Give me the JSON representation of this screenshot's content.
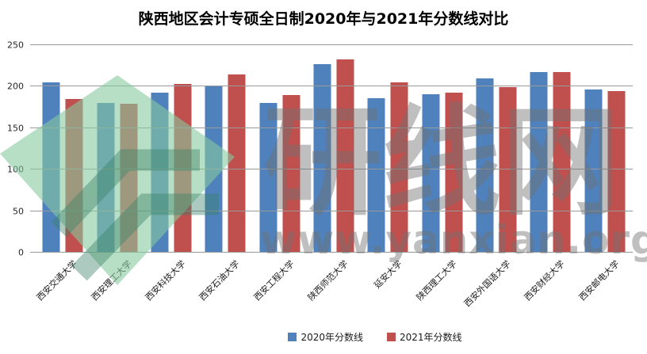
{
  "title": "陕西地区会计专硕全日制2020年与2021年分数线对比",
  "chart_data": {
    "type": "bar",
    "title": "陕西地区会计专硕全日制2020年与2021年分数线对比",
    "categories": [
      "西安交通大学",
      "西安理工大学",
      "西安科技大学",
      "西安石油大学",
      "西安工程大学",
      "陕西师范大学",
      "延安大学",
      "陕西理工大学",
      "西安外国语大学",
      "西安财经大学",
      "西安邮电大学"
    ],
    "series": [
      {
        "name": "2020年分数线",
        "color": "#4f81bd",
        "values": [
          205,
          180,
          193,
          200,
          180,
          227,
          186,
          191,
          210,
          218,
          197
        ]
      },
      {
        "name": "2021年分数线",
        "color": "#c0504d",
        "values": [
          185,
          179,
          203,
          215,
          190,
          233,
          205,
          193,
          199,
          218,
          195
        ]
      }
    ],
    "xlabel": "",
    "ylabel": "",
    "ylim": [
      0,
      250
    ],
    "yticks": [
      0,
      50,
      100,
      150,
      200,
      250
    ],
    "grid": true,
    "legend_position": "bottom"
  },
  "watermark": {
    "site_name": "研线网",
    "site_url": "www.yanxian.org"
  },
  "colors": {
    "series_2020": "#4f81bd",
    "series_2021": "#c0504d",
    "gridline": "#9a9a9a",
    "watermark_gray": "#707070",
    "watermark_green": "#87caa0",
    "watermark_green_dark": "#3a8066"
  }
}
